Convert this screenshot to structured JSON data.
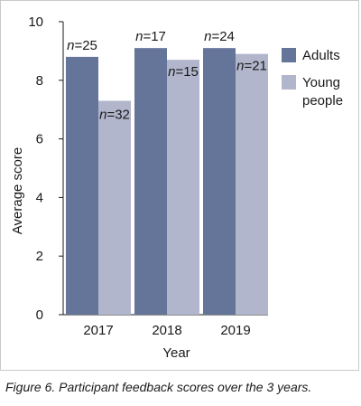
{
  "caption": "Figure 6. Participant feedback scores over the 3 years.",
  "chart_data": {
    "type": "bar",
    "categories": [
      "2017",
      "2018",
      "2019"
    ],
    "series": [
      {
        "name": "Adults",
        "values": [
          8.8,
          9.1,
          9.1
        ],
        "n": [
          "25",
          "17",
          "24"
        ],
        "color": "#65759a"
      },
      {
        "name": "Young people",
        "values": [
          7.3,
          8.7,
          8.9
        ],
        "n": [
          "32",
          "15",
          "21"
        ],
        "color": "#b1b6cc"
      }
    ],
    "n_prefix": "n",
    "xlabel": "Year",
    "ylabel": "Average score",
    "ylim": [
      0,
      10
    ],
    "yticks": [
      0,
      2,
      4,
      6,
      8,
      10
    ],
    "legend_position": "right",
    "legend_lines": [
      [
        "Adults"
      ],
      [
        "Young",
        "people"
      ]
    ],
    "grid": false
  }
}
